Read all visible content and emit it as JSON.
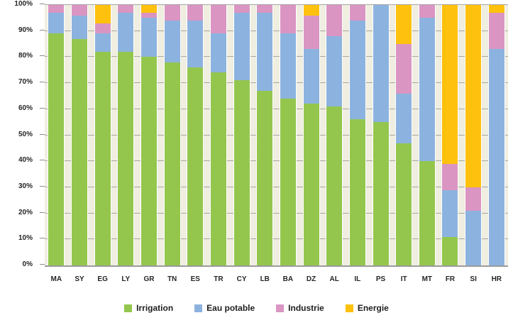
{
  "chart_data": {
    "type": "bar",
    "stacked": true,
    "stack_unit": "percent",
    "title": "",
    "xlabel": "",
    "ylabel": "",
    "categories": [
      "MA",
      "SY",
      "EG",
      "LY",
      "GR",
      "TN",
      "ES",
      "TR",
      "CY",
      "LB",
      "BA",
      "DZ",
      "AL",
      "IL",
      "PS",
      "IT",
      "MT",
      "FR",
      "SI",
      "HR"
    ],
    "series": [
      {
        "name": "Irrigation",
        "color": "#94C64D",
        "values": [
          89,
          87,
          82,
          82,
          80,
          78,
          76,
          74,
          71,
          67,
          64,
          62,
          61,
          56,
          55,
          47,
          40,
          11,
          0,
          0
        ]
      },
      {
        "name": "Eau potable",
        "color": "#8CB3DF",
        "values": [
          8,
          9,
          7,
          15,
          15,
          16,
          18,
          15,
          26,
          30,
          25,
          21,
          27,
          38,
          45,
          19,
          55,
          18,
          21,
          83
        ]
      },
      {
        "name": "Industrie",
        "color": "#DA95C2",
        "values": [
          3,
          4,
          4,
          3,
          2,
          6,
          6,
          11,
          3,
          3,
          11,
          13,
          12,
          6,
          0,
          19,
          5,
          10,
          9,
          14
        ]
      },
      {
        "name": "Energie",
        "color": "#FEC10D",
        "values": [
          0,
          0,
          7,
          0,
          3,
          0,
          0,
          0,
          0,
          0,
          0,
          4,
          0,
          0,
          0,
          15,
          0,
          61,
          70,
          3
        ]
      }
    ],
    "y_ticks": [
      "0%",
      "10%",
      "20%",
      "30%",
      "40%",
      "50%",
      "60%",
      "70%",
      "80%",
      "90%",
      "100%"
    ],
    "ylim": [
      0,
      100
    ],
    "grid": "horizontal",
    "gridline_color": "#A6A6A6",
    "plot_background": "#EFEEE0",
    "axis_line_color": "#9C9C9C",
    "text_color": "#262626",
    "legend_position": "bottom"
  }
}
